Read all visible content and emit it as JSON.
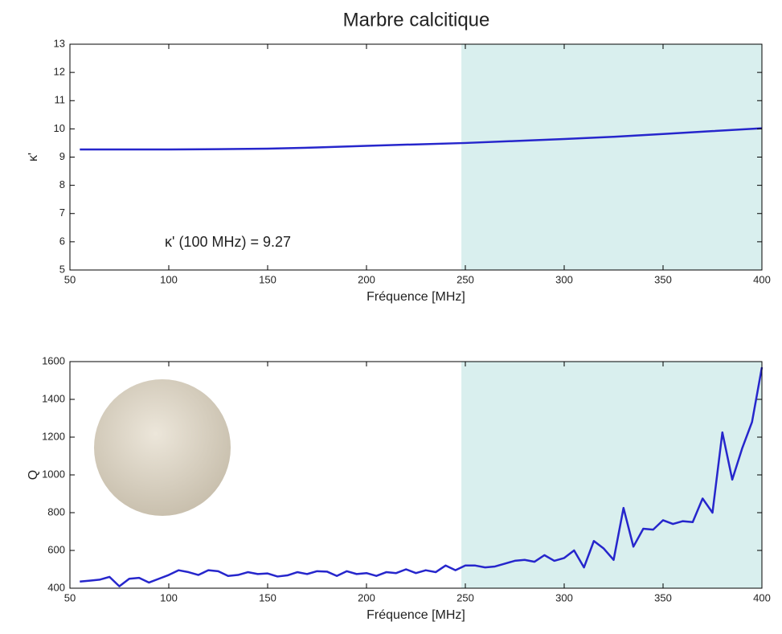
{
  "chart_data": [
    {
      "type": "line",
      "title": "Marbre calcitique",
      "xlabel": "Fréquence [MHz]",
      "ylabel": "κ'",
      "annotation": "κ' (100 MHz) = 9.27",
      "xlim": [
        50,
        400
      ],
      "xticks": [
        50,
        100,
        150,
        200,
        250,
        300,
        350,
        400
      ],
      "ylim": [
        5,
        13
      ],
      "yticks": [
        5,
        6,
        7,
        8,
        9,
        10,
        11,
        12,
        13
      ],
      "shade": [
        248,
        400
      ],
      "shade_color": "#d9efee",
      "x": [
        55,
        75,
        100,
        125,
        150,
        175,
        200,
        225,
        250,
        275,
        300,
        325,
        350,
        375,
        400
      ],
      "series": [
        {
          "color": "#2626cc",
          "values": [
            9.27,
            9.27,
            9.27,
            9.28,
            9.3,
            9.34,
            9.4,
            9.45,
            9.5,
            9.57,
            9.64,
            9.72,
            9.82,
            9.92,
            10.02
          ]
        }
      ]
    },
    {
      "type": "line",
      "xlabel": "Fréquence [MHz]",
      "ylabel": "Q",
      "xlim": [
        50,
        400
      ],
      "xticks": [
        50,
        100,
        150,
        200,
        250,
        300,
        350,
        400
      ],
      "ylim": [
        400,
        1600
      ],
      "yticks": [
        400,
        600,
        800,
        1000,
        1200,
        1400,
        1600
      ],
      "shade": [
        248,
        400
      ],
      "shade_color": "#d9efee",
      "x": [
        55,
        60,
        65,
        70,
        75,
        80,
        85,
        90,
        95,
        100,
        105,
        110,
        115,
        120,
        125,
        130,
        135,
        140,
        145,
        150,
        155,
        160,
        165,
        170,
        175,
        180,
        185,
        190,
        195,
        200,
        205,
        210,
        215,
        220,
        225,
        230,
        235,
        240,
        245,
        250,
        255,
        260,
        265,
        270,
        275,
        280,
        285,
        290,
        295,
        300,
        305,
        310,
        315,
        320,
        325,
        330,
        335,
        340,
        345,
        350,
        355,
        360,
        365,
        370,
        375,
        380,
        385,
        390,
        395,
        400
      ],
      "series": [
        {
          "color": "#2626cc",
          "values": [
            435,
            440,
            445,
            460,
            410,
            450,
            455,
            430,
            450,
            470,
            495,
            485,
            470,
            495,
            490,
            465,
            470,
            485,
            475,
            478,
            462,
            468,
            485,
            475,
            490,
            488,
            465,
            490,
            475,
            480,
            465,
            485,
            480,
            500,
            480,
            495,
            485,
            520,
            495,
            520,
            520,
            510,
            515,
            530,
            545,
            550,
            540,
            575,
            545,
            560,
            600,
            510,
            650,
            610,
            550,
            825,
            620,
            715,
            710,
            760,
            740,
            755,
            750,
            875,
            800,
            1225,
            975,
            1140,
            1280,
            1570
          ]
        }
      ]
    }
  ]
}
